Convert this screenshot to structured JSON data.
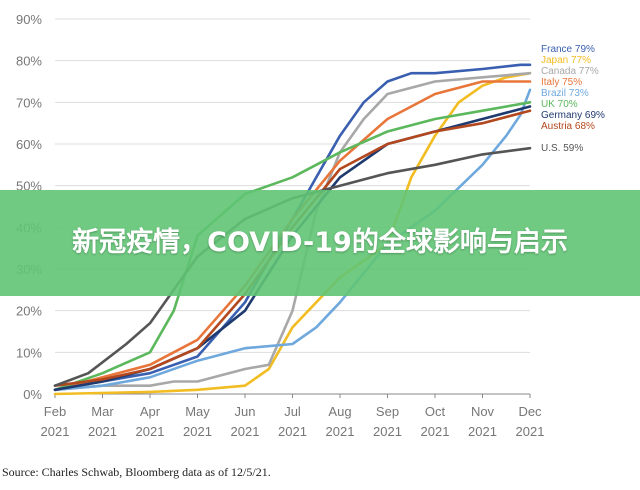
{
  "banner": {
    "title": "新冠疫情，COVID-19的全球影响与启示"
  },
  "source": "Source: Charles Schwab, Bloomberg data as of 12/5/21.",
  "chart_data": {
    "type": "line",
    "title": "",
    "xlabel": "",
    "ylabel": "",
    "x_ticks": [
      "Feb\n2021",
      "Mar\n2021",
      "Apr\n2021",
      "May\n2021",
      "Jun\n2021",
      "Jul\n2021",
      "Aug\n2021",
      "Sep\n2021",
      "Oct\n2021",
      "Nov\n2021",
      "Dec\n2021"
    ],
    "xlim": [
      0,
      10
    ],
    "ylim": [
      0,
      90
    ],
    "y_ticks": [
      "0%",
      "10%",
      "20%",
      "30%",
      "40%",
      "50%",
      "60%",
      "70%",
      "80%",
      "90%"
    ],
    "grid": true,
    "legend": "right-end labels",
    "series": [
      {
        "name": "France 79%",
        "color": "#3a5fb0",
        "points": [
          [
            0,
            1
          ],
          [
            1,
            3
          ],
          [
            2,
            5
          ],
          [
            3,
            9
          ],
          [
            4,
            22
          ],
          [
            5,
            42
          ],
          [
            6,
            62
          ],
          [
            6.5,
            70
          ],
          [
            7,
            75
          ],
          [
            7.5,
            77
          ],
          [
            8,
            77
          ],
          [
            9,
            78
          ],
          [
            9.8,
            79
          ],
          [
            10,
            79
          ]
        ]
      },
      {
        "name": "Japan 77%",
        "color": "#f2bd22",
        "points": [
          [
            0,
            0
          ],
          [
            2,
            0.5
          ],
          [
            3,
            1
          ],
          [
            4,
            2
          ],
          [
            4.5,
            6
          ],
          [
            5,
            16
          ],
          [
            5.5,
            22
          ],
          [
            6,
            28
          ],
          [
            7,
            36
          ],
          [
            7.5,
            52
          ],
          [
            8,
            62
          ],
          [
            8.5,
            70
          ],
          [
            9,
            74
          ],
          [
            9.5,
            76
          ],
          [
            10,
            77
          ]
        ]
      },
      {
        "name": "Canada 77%",
        "color": "#a8a8a8",
        "points": [
          [
            0,
            1
          ],
          [
            1,
            2
          ],
          [
            2,
            2
          ],
          [
            2.5,
            3
          ],
          [
            3,
            3
          ],
          [
            4,
            6
          ],
          [
            4.5,
            7
          ],
          [
            5,
            20
          ],
          [
            5.5,
            44
          ],
          [
            6,
            58
          ],
          [
            6.5,
            66
          ],
          [
            7,
            72
          ],
          [
            8,
            75
          ],
          [
            9,
            76
          ],
          [
            10,
            77
          ]
        ]
      },
      {
        "name": "Italy 75%",
        "color": "#e8763a",
        "points": [
          [
            0,
            1
          ],
          [
            1,
            4
          ],
          [
            2,
            7
          ],
          [
            3,
            13
          ],
          [
            4,
            26
          ],
          [
            5,
            42
          ],
          [
            6,
            56
          ],
          [
            7,
            66
          ],
          [
            8,
            72
          ],
          [
            9,
            75
          ],
          [
            10,
            75
          ]
        ]
      },
      {
        "name": "Brazil 73%",
        "color": "#6fa8dc",
        "points": [
          [
            0,
            1
          ],
          [
            1,
            2
          ],
          [
            2,
            4
          ],
          [
            3,
            8
          ],
          [
            4,
            11
          ],
          [
            5,
            12
          ],
          [
            5.5,
            16
          ],
          [
            6,
            22
          ],
          [
            7,
            36
          ],
          [
            8,
            44
          ],
          [
            9,
            55
          ],
          [
            9.5,
            62
          ],
          [
            9.8,
            67
          ],
          [
            10,
            73
          ]
        ]
      },
      {
        "name": "UK 70%",
        "color": "#5cb85c",
        "points": [
          [
            0,
            1
          ],
          [
            1,
            5
          ],
          [
            2,
            10
          ],
          [
            2.5,
            20
          ],
          [
            3,
            38
          ],
          [
            4,
            48
          ],
          [
            5,
            52
          ],
          [
            6,
            58
          ],
          [
            7,
            63
          ],
          [
            8,
            66
          ],
          [
            9,
            68
          ],
          [
            10,
            70
          ]
        ]
      },
      {
        "name": "Germany 69%",
        "color": "#1f3a6e",
        "points": [
          [
            0,
            1
          ],
          [
            1,
            3
          ],
          [
            2,
            6
          ],
          [
            3,
            11
          ],
          [
            4,
            20
          ],
          [
            5,
            38
          ],
          [
            6,
            52
          ],
          [
            7,
            60
          ],
          [
            8,
            63
          ],
          [
            9,
            66
          ],
          [
            10,
            69
          ]
        ]
      },
      {
        "name": "Austria 68%",
        "color": "#b3471d",
        "points": [
          [
            0,
            2
          ],
          [
            1,
            3.5
          ],
          [
            2,
            6
          ],
          [
            3,
            11
          ],
          [
            4,
            24
          ],
          [
            5,
            40
          ],
          [
            6,
            54
          ],
          [
            7,
            60
          ],
          [
            8,
            63
          ],
          [
            9,
            65
          ],
          [
            10,
            68
          ]
        ]
      },
      {
        "name": "U.S. 59%",
        "color": "#555555",
        "points": [
          [
            0,
            2
          ],
          [
            0.7,
            5
          ],
          [
            1.5,
            12
          ],
          [
            2,
            17
          ],
          [
            2.5,
            25
          ],
          [
            3,
            33
          ],
          [
            4,
            42
          ],
          [
            5,
            47
          ],
          [
            6,
            50
          ],
          [
            7,
            53
          ],
          [
            8,
            55
          ],
          [
            9,
            57.5
          ],
          [
            10,
            59
          ]
        ]
      }
    ]
  }
}
